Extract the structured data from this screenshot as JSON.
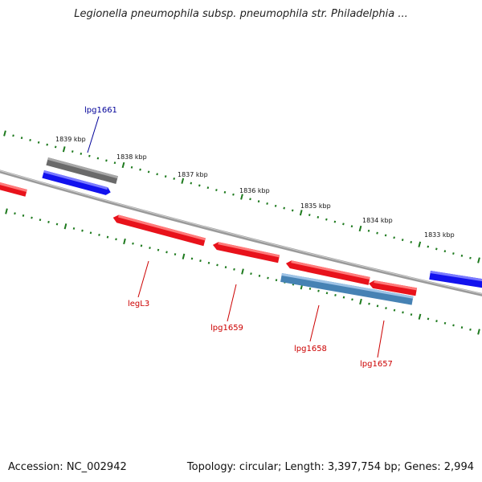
{
  "title": "Legionella pneumophila subsp. pneumophila str. Philadelphia ...",
  "footer": {
    "accession": "Accession: NC_002942",
    "summary": "Topology: circular; Length: 3,397,754 bp; Genes: 2,994"
  },
  "colors": {
    "backbone": "#8a8a8a",
    "ticks": "#1e7a1e",
    "gene_red": "#e8121b",
    "gene_blue": "#1212ee",
    "gene_gray": "#6a6a6a",
    "gene_steel": "#4682b4",
    "label_red": "#cc0000",
    "label_blue": "#000099"
  },
  "scale": {
    "labels": [
      "1839 kbp",
      "1838 kbp",
      "1837 kbp",
      "1836 kbp",
      "1835 kbp",
      "1834 kbp",
      "1833 kbp"
    ]
  },
  "genes": [
    {
      "name": "lpg1661",
      "color": "blue",
      "strand": "+"
    },
    {
      "name": "legL3",
      "color": "red",
      "strand": "-"
    },
    {
      "name": "lpg1659",
      "color": "red",
      "strand": "-"
    },
    {
      "name": "lpg1658",
      "color": "red",
      "strand": "-"
    },
    {
      "name": "lpg1657",
      "color": "red",
      "strand": "-"
    }
  ],
  "gene_labels": [
    "lpg1661",
    "legL3",
    "lpg1659",
    "lpg1658",
    "lpg1657"
  ]
}
